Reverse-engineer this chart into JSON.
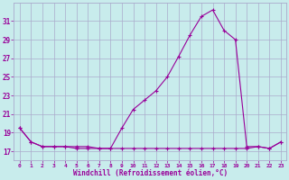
{
  "xlabel": "Windchill (Refroidissement éolien,°C)",
  "bg_color": "#c8ecec",
  "grid_color": "#aaaacc",
  "line_color": "#990099",
  "xlim": [
    -0.5,
    23.5
  ],
  "ylim": [
    16.0,
    33.0
  ],
  "yticks": [
    17,
    19,
    21,
    23,
    25,
    27,
    29,
    31
  ],
  "xticks": [
    0,
    1,
    2,
    3,
    4,
    5,
    6,
    7,
    8,
    9,
    10,
    11,
    12,
    13,
    14,
    15,
    16,
    17,
    18,
    19,
    20,
    21,
    22,
    23
  ],
  "series1_x": [
    0,
    1,
    2,
    3,
    4,
    5,
    6,
    7,
    8,
    9,
    10,
    11,
    12,
    13,
    14,
    15,
    16,
    17,
    18,
    19,
    20,
    21,
    22,
    23
  ],
  "series1_y": [
    19.5,
    18.0,
    17.5,
    17.5,
    17.5,
    17.3,
    17.3,
    17.3,
    17.3,
    17.3,
    17.3,
    17.3,
    17.3,
    17.3,
    17.3,
    17.3,
    17.3,
    17.3,
    17.3,
    17.3,
    17.3,
    17.5,
    17.3,
    18.0
  ],
  "series2_x": [
    0,
    1,
    2,
    3,
    4,
    5,
    6,
    7,
    8,
    9,
    10,
    11,
    12,
    13,
    14,
    15,
    16,
    17,
    18,
    19,
    20,
    21,
    22,
    23
  ],
  "series2_y": [
    19.5,
    18.0,
    17.5,
    17.5,
    17.5,
    17.5,
    17.5,
    17.3,
    17.3,
    19.5,
    21.5,
    22.5,
    23.5,
    25.0,
    27.2,
    29.5,
    31.5,
    32.2,
    30.0,
    29.0,
    17.5,
    17.5,
    17.3,
    18.0
  ],
  "figsize": [
    3.2,
    2.0
  ],
  "dpi": 100
}
